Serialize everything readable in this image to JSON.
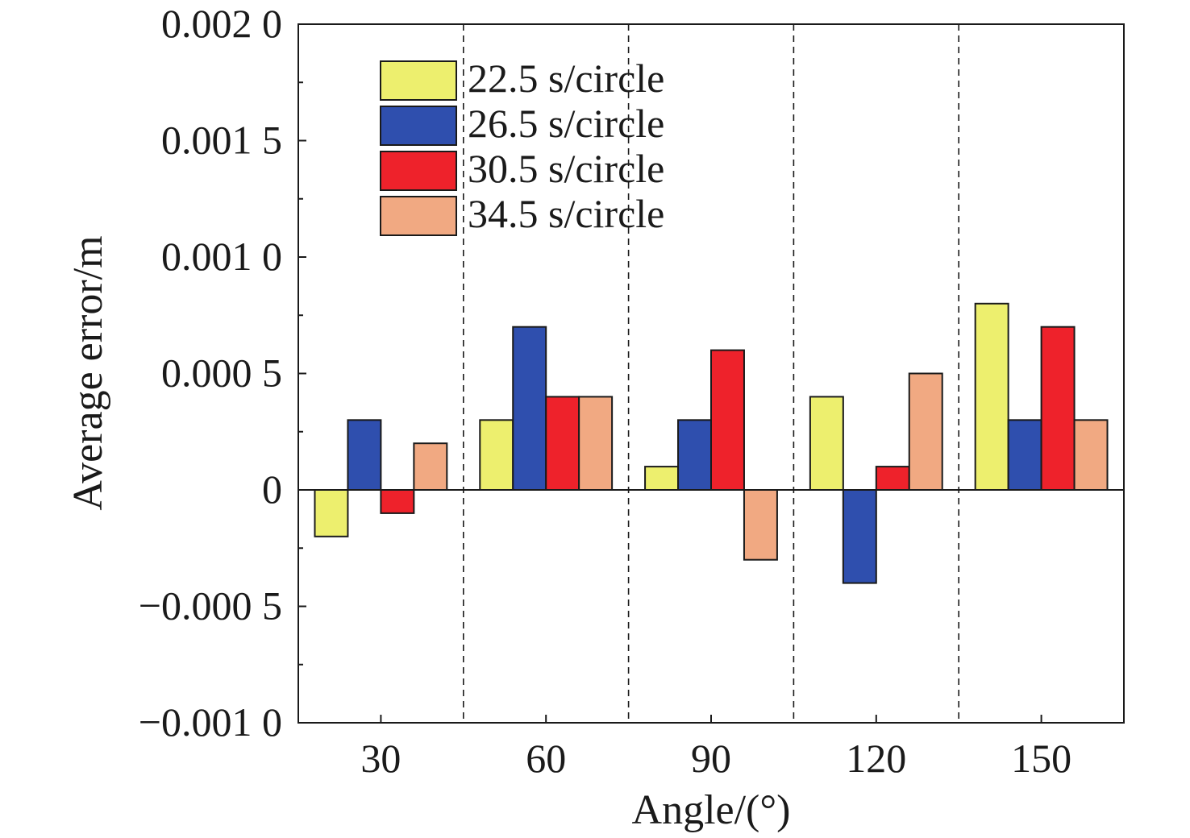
{
  "chart_data": {
    "type": "bar",
    "title": "",
    "xlabel": "Angle/(°)",
    "ylabel": "Average error/m",
    "categories": [
      "30",
      "60",
      "90",
      "120",
      "150"
    ],
    "series": [
      {
        "name": "22.5 s/circle",
        "color": "#EDEF6E",
        "values": [
          -0.0002,
          0.0003,
          0.0001,
          0.0004,
          0.0008
        ]
      },
      {
        "name": "26.5 s/circle",
        "color": "#2F4FAE",
        "values": [
          0.0003,
          0.0007,
          0.0003,
          -0.0004,
          0.0003
        ]
      },
      {
        "name": "30.5 s/circle",
        "color": "#EE222B",
        "values": [
          -0.0001,
          0.0004,
          0.0006,
          0.0001,
          0.0007
        ]
      },
      {
        "name": "34.5 s/circle",
        "color": "#F1A982",
        "values": [
          0.0002,
          0.0004,
          -0.0003,
          0.0005,
          0.0003
        ]
      }
    ],
    "ylim": [
      -0.001,
      0.002
    ],
    "yticks": [
      {
        "value": -0.001,
        "label": "−0.001 0"
      },
      {
        "value": -0.0005,
        "label": "−0.000 5"
      },
      {
        "value": 0,
        "label": "0"
      },
      {
        "value": 0.0005,
        "label": "0.000 5"
      },
      {
        "value": 0.001,
        "label": "0.001 0"
      },
      {
        "value": 0.0015,
        "label": "0.001 5"
      },
      {
        "value": 0.002,
        "label": "0.002 0"
      }
    ],
    "legend_position": "top-left",
    "grid": false,
    "group_separators": "dashed"
  }
}
